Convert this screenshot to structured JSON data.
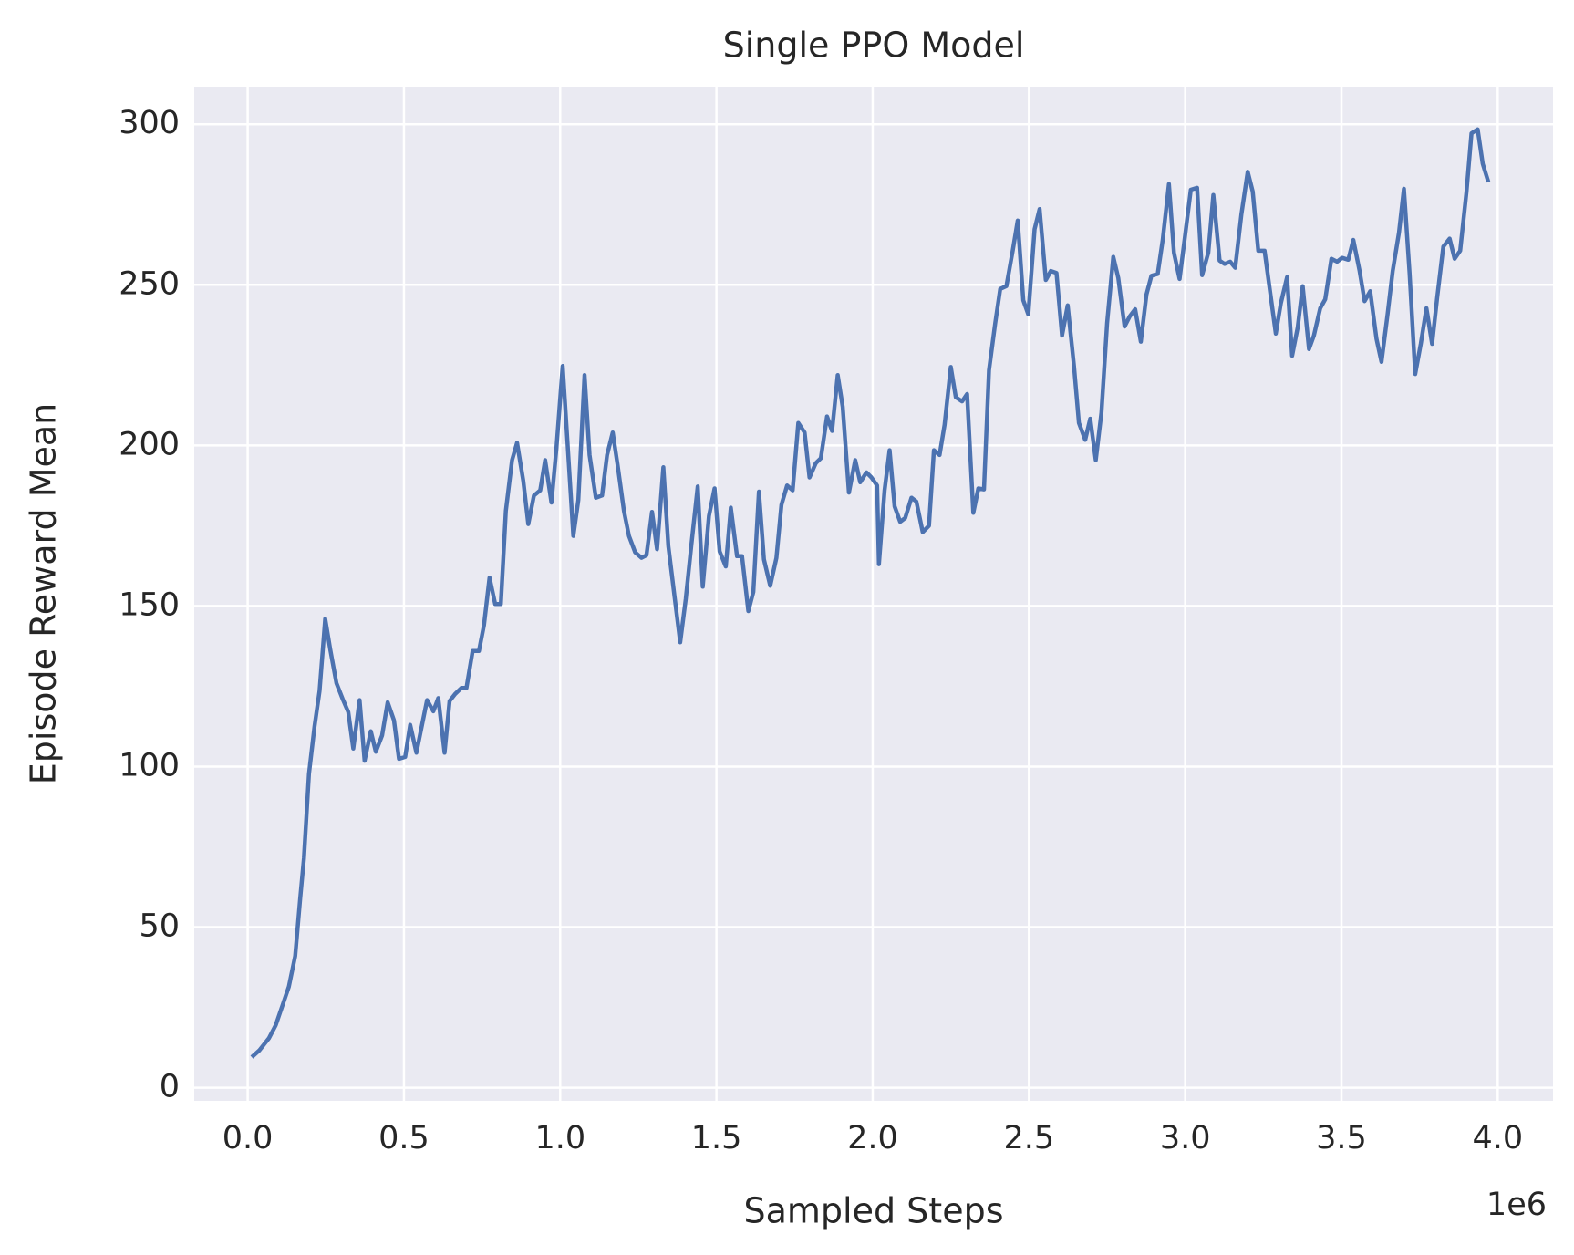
{
  "chart_data": {
    "type": "line",
    "title": "Single PPO Model",
    "xlabel": "Sampled Steps",
    "ylabel": "Episode Reward Mean",
    "x_offset_label": "1e6",
    "color": "#4c72b0",
    "background": "#eaeaf2",
    "grid": true,
    "xlim": [
      -171000,
      4177000
    ],
    "ylim": [
      -4.1,
      311.7
    ],
    "xticks": [
      {
        "value": 0,
        "label": "0.0"
      },
      {
        "value": 500000,
        "label": "0.5"
      },
      {
        "value": 1000000,
        "label": "1.0"
      },
      {
        "value": 1500000,
        "label": "1.5"
      },
      {
        "value": 2000000,
        "label": "2.0"
      },
      {
        "value": 2500000,
        "label": "2.5"
      },
      {
        "value": 3000000,
        "label": "3.0"
      },
      {
        "value": 3500000,
        "label": "3.5"
      },
      {
        "value": 4000000,
        "label": "4.0"
      }
    ],
    "yticks": [
      0,
      50,
      100,
      150,
      200,
      250,
      300
    ],
    "x": [
      13000,
      38000,
      68000,
      90000,
      112000,
      132000,
      152000,
      168000,
      180000,
      196000,
      214000,
      230000,
      248000,
      264000,
      284000,
      304000,
      322000,
      338000,
      358000,
      374000,
      394000,
      410000,
      430000,
      448000,
      468000,
      484000,
      504000,
      520000,
      540000,
      558000,
      574000,
      594000,
      610000,
      630000,
      646000,
      664000,
      684000,
      700000,
      720000,
      740000,
      756000,
      774000,
      792000,
      810000,
      826000,
      846000,
      862000,
      882000,
      898000,
      916000,
      936000,
      952000,
      972000,
      988000,
      1008000,
      1024000,
      1042000,
      1058000,
      1078000,
      1094000,
      1114000,
      1134000,
      1150000,
      1168000,
      1184000,
      1204000,
      1220000,
      1240000,
      1260000,
      1276000,
      1294000,
      1310000,
      1330000,
      1346000,
      1366000,
      1384000,
      1402000,
      1420000,
      1440000,
      1456000,
      1476000,
      1494000,
      1510000,
      1530000,
      1546000,
      1566000,
      1582000,
      1602000,
      1618000,
      1636000,
      1652000,
      1672000,
      1692000,
      1708000,
      1726000,
      1744000,
      1762000,
      1782000,
      1798000,
      1818000,
      1834000,
      1854000,
      1870000,
      1888000,
      1904000,
      1924000,
      1944000,
      1960000,
      1980000,
      1996000,
      2014000,
      2020000,
      2038000,
      2054000,
      2070000,
      2088000,
      2104000,
      2124000,
      2140000,
      2160000,
      2180000,
      2196000,
      2214000,
      2230000,
      2250000,
      2266000,
      2286000,
      2302000,
      2322000,
      2338000,
      2356000,
      2372000,
      2392000,
      2408000,
      2428000,
      2448000,
      2464000,
      2482000,
      2498000,
      2518000,
      2534000,
      2554000,
      2570000,
      2588000,
      2606000,
      2624000,
      2644000,
      2660000,
      2680000,
      2696000,
      2714000,
      2732000,
      2750000,
      2770000,
      2786000,
      2806000,
      2822000,
      2840000,
      2858000,
      2876000,
      2892000,
      2912000,
      2928000,
      2948000,
      2964000,
      2982000,
      3000000,
      3018000,
      3038000,
      3054000,
      3074000,
      3090000,
      3110000,
      3126000,
      3144000,
      3160000,
      3180000,
      3200000,
      3216000,
      3234000,
      3254000,
      3270000,
      3290000,
      3306000,
      3326000,
      3342000,
      3360000,
      3376000,
      3396000,
      3412000,
      3432000,
      3448000,
      3468000,
      3486000,
      3502000,
      3522000,
      3538000,
      3558000,
      3574000,
      3592000,
      3612000,
      3628000,
      3648000,
      3664000,
      3684000,
      3700000,
      3718000,
      3736000,
      3754000,
      3772000,
      3790000,
      3806000,
      3826000,
      3846000,
      3862000,
      3880000,
      3900000,
      3916000,
      3936000,
      3952000,
      3970000
    ],
    "values": [
      9.5,
      11.7,
      15.4,
      19.5,
      25.8,
      31.5,
      41,
      59,
      71.5,
      97.7,
      112.5,
      123.5,
      146,
      136.5,
      126,
      121,
      117,
      105.6,
      120.7,
      101.8,
      111,
      104.6,
      109.7,
      120,
      114.4,
      102.4,
      103,
      113,
      104.3,
      113,
      120.7,
      117.2,
      121.3,
      104.3,
      120.4,
      122.6,
      124.5,
      124.5,
      136,
      136,
      144,
      158.8,
      150.6,
      150.6,
      179.6,
      195.4,
      200.8,
      189,
      175.5,
      184.4,
      186,
      195.4,
      182.2,
      199.2,
      224.7,
      200,
      171.8,
      183,
      221.9,
      197,
      183.7,
      184.4,
      197,
      204,
      193.8,
      179.6,
      171.8,
      166.7,
      165,
      165.8,
      179.3,
      167.7,
      193.2,
      168.6,
      152.9,
      138.7,
      152.2,
      169.2,
      187.2,
      156,
      178,
      186.6,
      167,
      162.3,
      180.6,
      165.5,
      165.5,
      148.4,
      154.4,
      185.6,
      164.5,
      156.3,
      165,
      181.5,
      187.5,
      186,
      207,
      204,
      190,
      194.5,
      196,
      209,
      204.5,
      221.9,
      212,
      185.3,
      195.4,
      188.5,
      191.6,
      190,
      187.5,
      163,
      186,
      198.5,
      181,
      176.2,
      177.4,
      183.7,
      182.5,
      173,
      175,
      198.5,
      197,
      206.4,
      224.4,
      215,
      213.7,
      216,
      179,
      186.6,
      186.3,
      223.4,
      238,
      248.7,
      249.6,
      260.6,
      270,
      245.2,
      240.8,
      267.3,
      273.6,
      251.5,
      254.3,
      253.7,
      234.2,
      243.6,
      224.7,
      207,
      201.7,
      208.3,
      195.4,
      210.2,
      238,
      258.7,
      252.1,
      237,
      240.1,
      242.4,
      232.3,
      247,
      252.8,
      253.4,
      264,
      281.4,
      260,
      251.8,
      265.7,
      279.6,
      280.2,
      253,
      260,
      278,
      257.5,
      256.5,
      257.2,
      255.3,
      272,
      285.2,
      279,
      260.6,
      260.6,
      249,
      234.8,
      244.2,
      252.4,
      227.9,
      236.7,
      249.6,
      230,
      234.2,
      242.7,
      245.5,
      258.1,
      257.2,
      258.4,
      257.8,
      264,
      254.3,
      244.9,
      248,
      233.2,
      226,
      241.1,
      254.3,
      266.3,
      279.9,
      253.7,
      222.2,
      231.6,
      242.7,
      231.6,
      245.8,
      261.9,
      264.4,
      258.1,
      260.6,
      278.9,
      297.2,
      298.4,
      287.7,
      282
    ]
  }
}
